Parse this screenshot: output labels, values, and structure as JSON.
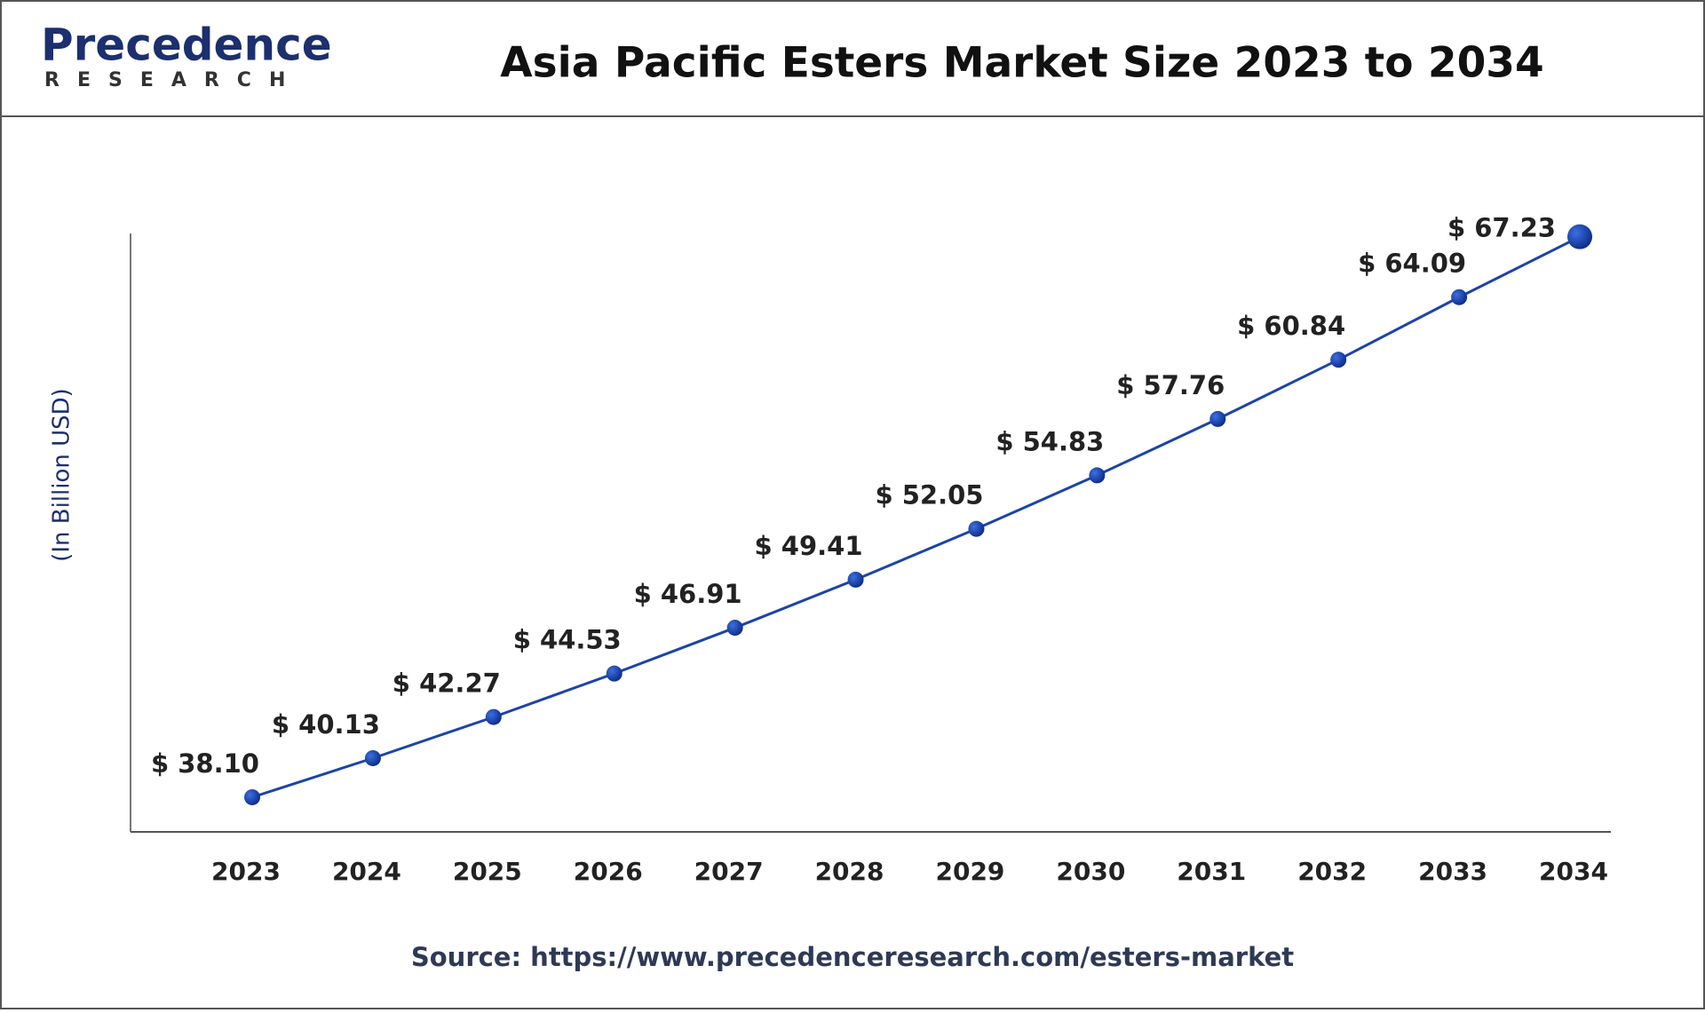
{
  "chart_data": {
    "type": "line",
    "logo": {
      "name": "Precedence",
      "tagline": "RESEARCH"
    },
    "title": "Asia Pacific Esters Market Size 2023 to 2034",
    "y_label": "(In Billion USD)",
    "source": "Source: https://www.precedenceresearch.com/esters-market",
    "categories": [
      "2023",
      "2024",
      "2025",
      "2026",
      "2027",
      "2028",
      "2029",
      "2030",
      "2031",
      "2032",
      "2033",
      "2034"
    ],
    "values": [
      38.1,
      40.13,
      42.27,
      44.53,
      46.91,
      49.41,
      52.05,
      54.83,
      57.76,
      60.84,
      64.09,
      67.23
    ],
    "value_labels": [
      "$ 38.10",
      "$ 40.13",
      "$ 42.27",
      "$ 44.53",
      "$ 46.91",
      "$ 49.41",
      "$ 52.05",
      "$ 54.83",
      "$ 57.76",
      "$ 60.84",
      "$ 64.09",
      "$ 67.23"
    ],
    "color": "#1c44a8",
    "ylim": [
      36.3,
      67.4
    ],
    "grid": false
  }
}
